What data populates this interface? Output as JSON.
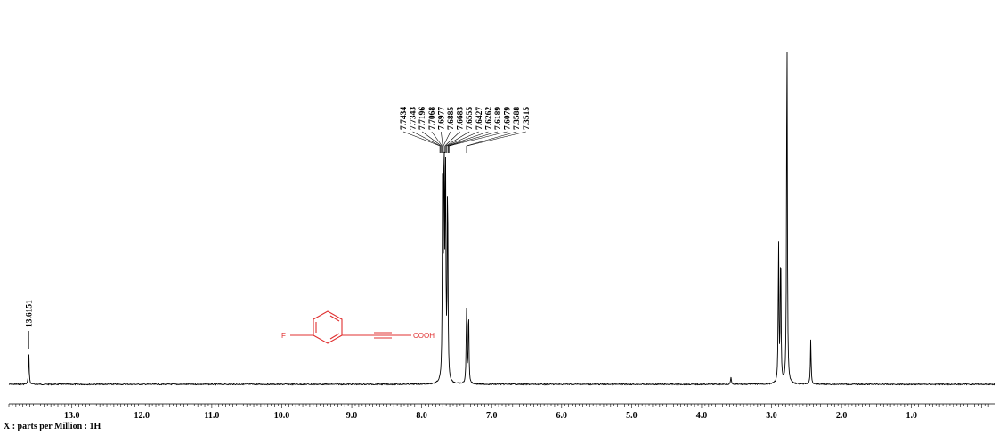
{
  "chart_data": {
    "type": "line",
    "title": "",
    "xlabel": "X : parts per Million : 1H",
    "ylabel": "",
    "xlim": [
      13.9,
      -0.2
    ],
    "reversed_x": true,
    "grid": false,
    "x_ticks": [
      "13.0",
      "12.0",
      "11.0",
      "10.0",
      "9.0",
      "8.0",
      "7.0",
      "6.0",
      "5.0",
      "4.0",
      "3.0",
      "2.0",
      "1.0"
    ],
    "peak_labels": {
      "aromatic_group": [
        "7.7434",
        "7.7343",
        "7.7196",
        "7.7068",
        "7.6977",
        "7.6885",
        "7.6683",
        "7.6555",
        "7.6427",
        "7.6262",
        "7.6189",
        "7.6079",
        "7.3588",
        "7.3515"
      ],
      "acid": [
        "13.6151"
      ]
    },
    "peaks": [
      {
        "ppm": 13.6151,
        "height": 0.085
      },
      {
        "ppm": 7.7,
        "height": 0.6
      },
      {
        "ppm": 7.68,
        "height": 0.62
      },
      {
        "ppm": 7.66,
        "height": 0.58
      },
      {
        "ppm": 7.63,
        "height": 0.55
      },
      {
        "ppm": 7.36,
        "height": 0.2
      },
      {
        "ppm": 7.33,
        "height": 0.2
      },
      {
        "ppm": 3.58,
        "height": 0.02
      },
      {
        "ppm": 2.9,
        "height": 0.38
      },
      {
        "ppm": 2.87,
        "height": 0.37
      },
      {
        "ppm": 2.78,
        "height": 1.0
      },
      {
        "ppm": 2.44,
        "height": 0.12
      }
    ]
  },
  "molecule": {
    "left_atom": "F",
    "right_group": "COOH",
    "color": "#e03030"
  }
}
